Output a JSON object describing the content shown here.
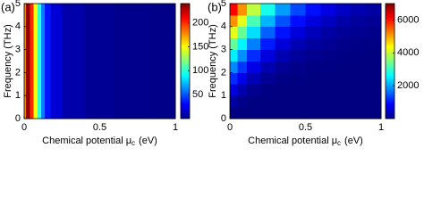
{
  "chart_data": [
    {
      "type": "heatmap",
      "panel_label": "(a)",
      "ylabel": "Frequency (THz)",
      "xlabel": [
        "Chemical potential μ",
        "c",
        "(eV)"
      ],
      "colormap": "jet",
      "x": [
        0.0,
        0.025,
        0.05,
        0.075,
        0.1,
        0.125,
        0.15,
        0.2,
        0.3,
        0.5,
        0.7,
        1.0
      ],
      "y": [
        2.5
      ],
      "z": [
        [
          180,
          235,
          200,
          150,
          100,
          60,
          35,
          20,
          10,
          5,
          3,
          2
        ]
      ],
      "xlim": [
        0,
        1
      ],
      "xticks": [
        0,
        0.5,
        1
      ],
      "ylim": [
        0,
        5
      ],
      "yticks": [
        0,
        1,
        2,
        3,
        4,
        5
      ],
      "clim": [
        0,
        240
      ],
      "cticks": [
        50,
        100,
        150,
        200
      ]
    },
    {
      "type": "heatmap",
      "panel_label": "(b)",
      "ylabel": "Frequency (THz)",
      "xlabel": [
        "Chemical potential μ",
        "c",
        "(eV)"
      ],
      "colormap": "jet",
      "x": [
        0.025,
        0.075,
        0.15,
        0.25,
        0.35,
        0.45,
        0.55,
        0.65,
        0.75,
        0.85,
        0.95
      ],
      "y": [
        0.25,
        0.75,
        1.25,
        1.75,
        2.25,
        2.75,
        3.25,
        3.75,
        4.25,
        4.75
      ],
      "z": [
        [
          20,
          0,
          0,
          0,
          0,
          0,
          0,
          0,
          0,
          0,
          0
        ],
        [
          240,
          80,
          20,
          0,
          0,
          0,
          0,
          0,
          0,
          0,
          0
        ],
        [
          650,
          330,
          120,
          30,
          10,
          0,
          0,
          0,
          0,
          0,
          0
        ],
        [
          1170,
          730,
          360,
          140,
          50,
          20,
          10,
          0,
          0,
          0,
          0
        ],
        [
          1810,
          1250,
          720,
          340,
          160,
          80,
          40,
          20,
          10,
          0,
          0
        ],
        [
          2520,
          1860,
          1180,
          650,
          350,
          190,
          110,
          60,
          30,
          20,
          10
        ],
        [
          3320,
          2570,
          1750,
          1050,
          630,
          370,
          230,
          140,
          80,
          50,
          30
        ],
        [
          4190,
          3350,
          2400,
          1540,
          990,
          630,
          410,
          260,
          170,
          110,
          70
        ],
        [
          5120,
          4200,
          3130,
          2120,
          1430,
          960,
          650,
          440,
          300,
          200,
          140
        ],
        [
          6110,
          5130,
          3940,
          2770,
          1950,
          1370,
          970,
          680,
          480,
          340,
          240
        ]
      ],
      "xlim": [
        0,
        1
      ],
      "xticks": [
        0,
        0.5,
        1
      ],
      "ylim": [
        0,
        5
      ],
      "yticks": [
        0,
        1,
        2,
        3,
        4,
        5
      ],
      "clim": [
        0,
        7000
      ],
      "cticks": [
        2000,
        4000,
        6000
      ]
    }
  ]
}
